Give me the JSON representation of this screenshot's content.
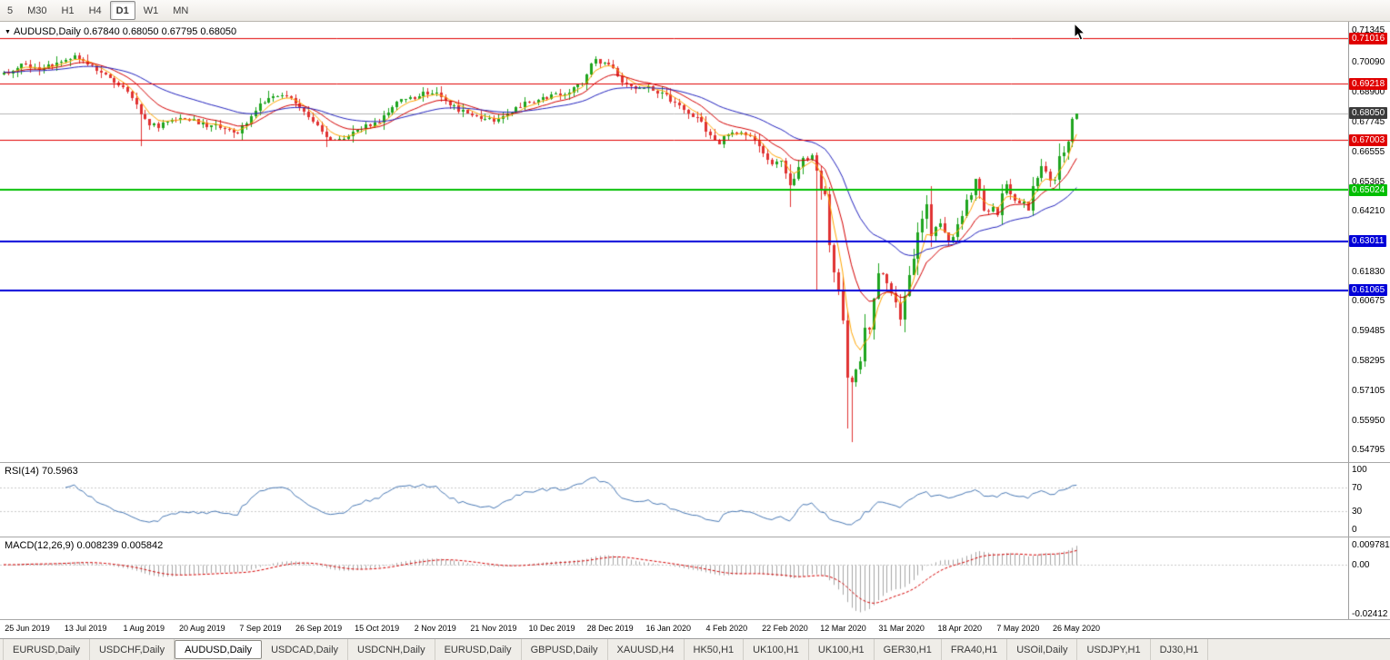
{
  "toolbar": {
    "timeframes": [
      {
        "label": "5",
        "active": false
      },
      {
        "label": "M30",
        "active": false
      },
      {
        "label": "H1",
        "active": false
      },
      {
        "label": "H4",
        "active": false
      },
      {
        "label": "D1",
        "active": true
      },
      {
        "label": "W1",
        "active": false
      },
      {
        "label": "MN",
        "active": false
      }
    ]
  },
  "main_chart": {
    "header": "AUDUSD,Daily 0.67840 0.68050 0.67795 0.68050"
  },
  "rsi": {
    "header": "RSI(14) 70.5963",
    "levels": [
      {
        "label": "100",
        "value": 100
      },
      {
        "label": "70",
        "value": 70
      },
      {
        "label": "30",
        "value": 30
      },
      {
        "label": "0",
        "value": 0
      }
    ]
  },
  "macd": {
    "header": "MACD(12,26,9) 0.008239 0.005842",
    "axis": [
      {
        "label": "0.009781",
        "value": 0.009781
      },
      {
        "label": "0.00",
        "value": 0
      },
      {
        "label": "-0.02412",
        "value": -0.02412
      }
    ]
  },
  "price_axis": {
    "regular": [
      {
        "label": "0.71345",
        "value": 0.71345
      },
      {
        "label": "0.70090",
        "value": 0.7009
      },
      {
        "label": "0.68900",
        "value": 0.689
      },
      {
        "label": "0.67745",
        "value": 0.67745
      },
      {
        "label": "0.66555",
        "value": 0.66555
      },
      {
        "label": "0.65365",
        "value": 0.65365
      },
      {
        "label": "0.64210",
        "value": 0.6421
      },
      {
        "label": "0.63020",
        "value": 0.6302
      },
      {
        "label": "0.61830",
        "value": 0.6183
      },
      {
        "label": "0.60675",
        "value": 0.60675
      },
      {
        "label": "0.59485",
        "value": 0.59485
      },
      {
        "label": "0.58295",
        "value": 0.58295
      },
      {
        "label": "0.57105",
        "value": 0.57105
      },
      {
        "label": "0.55950",
        "value": 0.5595
      },
      {
        "label": "0.54795",
        "value": 0.54795
      }
    ],
    "badges": [
      {
        "label": "0.71016",
        "value": 0.71016,
        "color": "#E00000"
      },
      {
        "label": "0.69218",
        "value": 0.69218,
        "color": "#E00000"
      },
      {
        "label": "0.68050",
        "value": 0.6805,
        "color": "#3A3A3A"
      },
      {
        "label": "0.67003",
        "value": 0.67003,
        "color": "#E00000"
      },
      {
        "label": "0.65024",
        "value": 0.65024,
        "color": "#00BE00"
      },
      {
        "label": "0.63011",
        "value": 0.63011,
        "color": "#0000D8"
      },
      {
        "label": "0.61065",
        "value": 0.61065,
        "color": "#0000D8"
      }
    ]
  },
  "x_labels": [
    "25 Jun 2019",
    "13 Jul 2019",
    "1 Aug 2019",
    "20 Aug 2019",
    "7 Sep 2019",
    "26 Sep 2019",
    "15 Oct 2019",
    "2 Nov 2019",
    "21 Nov 2019",
    "10 Dec 2019",
    "28 Dec 2019",
    "16 Jan 2020",
    "4 Feb 2020",
    "22 Feb 2020",
    "12 Mar 2020",
    "31 Mar 2020",
    "18 Apr 2020",
    "7 May 2020",
    "26 May 2020"
  ],
  "tabs": {
    "active_index": 2,
    "items": [
      "EURUSD,Daily",
      "USDCHF,Daily",
      "AUDUSD,Daily",
      "USDCAD,Daily",
      "USDCNH,Daily",
      "EURUSD,Daily",
      "GBPUSD,Daily",
      "XAUUSD,H4",
      "HK50,H1",
      "UK100,H1",
      "UK100,H1",
      "GER30,H1",
      "FRA40,H1",
      "USOil,Daily",
      "USDJPY,H1",
      "DJ30,H1"
    ],
    "active_label": "AUDUSD,Daily"
  },
  "chart_data": {
    "type": "candlestick",
    "symbol": "AUDUSD",
    "timeframe": "Daily",
    "last_bar": {
      "open": 0.6784,
      "high": 0.6805,
      "low": 0.67795,
      "close": 0.6805
    },
    "candle_count": 244,
    "price_range": {
      "top": 0.7167,
      "bottom": 0.5425
    },
    "colors": {
      "up": "#1FA51F",
      "down": "#E03232",
      "rsi_line": "#4878B4",
      "macd_histogram": "#A6A6A6",
      "macd_signal": "#D40000",
      "bid_line": "#B4B4B4",
      "resistance": "#E00000",
      "support_green": "#00BE00",
      "support_blue": "#0000D8"
    },
    "bid_line_value": 0.6805,
    "horizontal_lines": [
      {
        "value": 0.71016,
        "color": "#E00000",
        "width": 1
      },
      {
        "value": 0.69218,
        "color": "#E00000",
        "width": 1
      },
      {
        "value": 0.67003,
        "color": "#E00000",
        "width": 1
      },
      {
        "value": 0.65024,
        "color": "#00BE00",
        "width": 2
      },
      {
        "value": 0.63011,
        "color": "#0000D8",
        "width": 2
      },
      {
        "value": 0.61065,
        "color": "#0000D8",
        "width": 2
      }
    ],
    "moving_averages": [
      {
        "type": "ema",
        "period": 5,
        "color": "#FFA500"
      },
      {
        "type": "ema",
        "period": 13,
        "color": "#D40000"
      },
      {
        "type": "ema",
        "period": 34,
        "color": "#2222BE"
      }
    ],
    "rsi_period": 14,
    "macd_params": {
      "fast": 12,
      "slow": 26,
      "signal": 9
    },
    "price_anchors": [
      [
        0,
        0.696
      ],
      [
        2,
        0.6975
      ],
      [
        4,
        0.6995
      ],
      [
        6,
        0.6985
      ],
      [
        8,
        0.697
      ],
      [
        10,
        0.699
      ],
      [
        12,
        0.7
      ],
      [
        14,
        0.7015
      ],
      [
        16,
        0.703
      ],
      [
        18,
        0.701
      ],
      [
        20,
        0.6988
      ],
      [
        22,
        0.697
      ],
      [
        24,
        0.695
      ],
      [
        26,
        0.692
      ],
      [
        28,
        0.6895
      ],
      [
        30,
        0.684
      ],
      [
        31,
        0.68
      ],
      [
        33,
        0.6765
      ],
      [
        35,
        0.6755
      ],
      [
        37,
        0.677
      ],
      [
        39,
        0.6785
      ],
      [
        41,
        0.679
      ],
      [
        43,
        0.6775
      ],
      [
        45,
        0.6765
      ],
      [
        47,
        0.6758
      ],
      [
        49,
        0.675
      ],
      [
        51,
        0.6738
      ],
      [
        53,
        0.673
      ],
      [
        55,
        0.6772
      ],
      [
        57,
        0.682
      ],
      [
        59,
        0.6852
      ],
      [
        61,
        0.6868
      ],
      [
        63,
        0.688
      ],
      [
        65,
        0.6862
      ],
      [
        67,
        0.683
      ],
      [
        69,
        0.6788
      ],
      [
        71,
        0.6765
      ],
      [
        73,
        0.6718
      ],
      [
        75,
        0.67
      ],
      [
        77,
        0.6712
      ],
      [
        79,
        0.6735
      ],
      [
        81,
        0.6752
      ],
      [
        83,
        0.676
      ],
      [
        85,
        0.6772
      ],
      [
        87,
        0.6818
      ],
      [
        89,
        0.6848
      ],
      [
        91,
        0.6856
      ],
      [
        93,
        0.6868
      ],
      [
        95,
        0.6884
      ],
      [
        97,
        0.689
      ],
      [
        99,
        0.6875
      ],
      [
        101,
        0.6845
      ],
      [
        103,
        0.682
      ],
      [
        105,
        0.6806
      ],
      [
        107,
        0.6792
      ],
      [
        109,
        0.6784
      ],
      [
        111,
        0.6776
      ],
      [
        113,
        0.6792
      ],
      [
        115,
        0.6812
      ],
      [
        117,
        0.6836
      ],
      [
        119,
        0.685
      ],
      [
        121,
        0.6856
      ],
      [
        123,
        0.6868
      ],
      [
        125,
        0.688
      ],
      [
        127,
        0.6886
      ],
      [
        129,
        0.6904
      ],
      [
        131,
        0.6926
      ],
      [
        132,
        0.6958
      ],
      [
        133,
        0.6994
      ],
      [
        134,
        0.7018
      ],
      [
        136,
        0.7
      ],
      [
        138,
        0.6984
      ],
      [
        140,
        0.6926
      ],
      [
        142,
        0.6906
      ],
      [
        144,
        0.6898
      ],
      [
        146,
        0.6906
      ],
      [
        148,
        0.689
      ],
      [
        150,
        0.6874
      ],
      [
        152,
        0.684
      ],
      [
        154,
        0.682
      ],
      [
        156,
        0.68
      ],
      [
        158,
        0.6768
      ],
      [
        160,
        0.6712
      ],
      [
        162,
        0.669
      ],
      [
        164,
        0.6722
      ],
      [
        166,
        0.673
      ],
      [
        168,
        0.6716
      ],
      [
        170,
        0.67
      ],
      [
        172,
        0.664
      ],
      [
        174,
        0.6605
      ],
      [
        176,
        0.6625
      ],
      [
        178,
        0.6515
      ],
      [
        180,
        0.659
      ],
      [
        181,
        0.6625
      ],
      [
        183,
        0.664
      ],
      [
        184,
        0.658
      ],
      [
        185,
        0.6505
      ],
      [
        186,
        0.649
      ],
      [
        187,
        0.629
      ],
      [
        188,
        0.6185
      ],
      [
        189,
        0.6115
      ],
      [
        190,
        0.5995
      ],
      [
        191,
        0.577
      ],
      [
        192,
        0.5745
      ],
      [
        193,
        0.5795
      ],
      [
        194,
        0.5825
      ],
      [
        195,
        0.5965
      ],
      [
        196,
        0.5958
      ],
      [
        197,
        0.6065
      ],
      [
        198,
        0.617
      ],
      [
        199,
        0.6168
      ],
      [
        200,
        0.6135
      ],
      [
        201,
        0.6095
      ],
      [
        202,
        0.606
      ],
      [
        203,
        0.5996
      ],
      [
        204,
        0.6092
      ],
      [
        205,
        0.6166
      ],
      [
        206,
        0.623
      ],
      [
        207,
        0.634
      ],
      [
        208,
        0.6392
      ],
      [
        209,
        0.644
      ],
      [
        210,
        0.6326
      ],
      [
        211,
        0.636
      ],
      [
        212,
        0.6366
      ],
      [
        213,
        0.634
      ],
      [
        214,
        0.6292
      ],
      [
        215,
        0.632
      ],
      [
        216,
        0.637
      ],
      [
        217,
        0.6396
      ],
      [
        218,
        0.6466
      ],
      [
        219,
        0.649
      ],
      [
        220,
        0.655
      ],
      [
        221,
        0.651
      ],
      [
        222,
        0.6416
      ],
      [
        224,
        0.6436
      ],
      [
        225,
        0.64
      ],
      [
        226,
        0.6496
      ],
      [
        227,
        0.653
      ],
      [
        228,
        0.6486
      ],
      [
        229,
        0.647
      ],
      [
        230,
        0.645
      ],
      [
        231,
        0.646
      ],
      [
        232,
        0.6416
      ],
      [
        233,
        0.6526
      ],
      [
        234,
        0.6556
      ],
      [
        235,
        0.6596
      ],
      [
        236,
        0.6566
      ],
      [
        237,
        0.6536
      ],
      [
        238,
        0.6546
      ],
      [
        239,
        0.6636
      ],
      [
        240,
        0.6652
      ],
      [
        241,
        0.67
      ],
      [
        242,
        0.6784
      ],
      [
        243,
        0.6805
      ]
    ],
    "overrides": {
      "16": {
        "h": 0.7045
      },
      "31": {
        "l": 0.6677
      },
      "73": {
        "l": 0.6671
      },
      "134": {
        "h": 0.7032
      },
      "178": {
        "l": 0.6435
      },
      "184": {
        "h": 0.665,
        "l": 0.6105
      },
      "191": {
        "l": 0.556
      },
      "192": {
        "l": 0.5506
      },
      "242": {
        "c": 0.6784
      },
      "243": {
        "o": 0.6784,
        "h": 0.6805,
        "l": 0.67795,
        "c": 0.6805
      }
    }
  }
}
